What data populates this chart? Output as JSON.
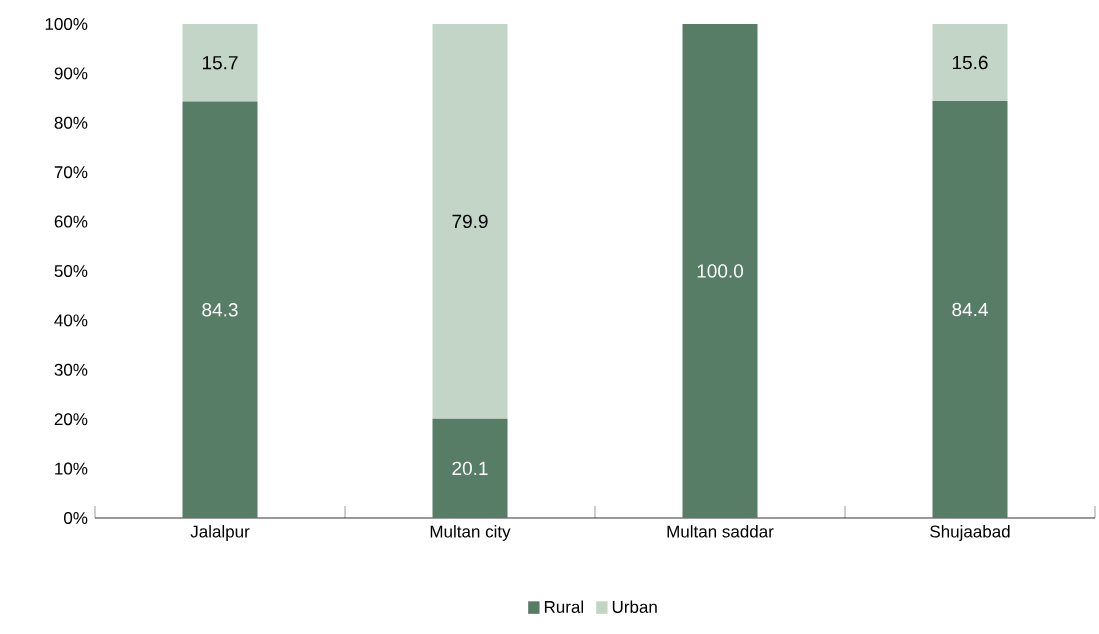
{
  "chart_data": {
    "type": "bar",
    "stacked": true,
    "categories": [
      "Jalalpur",
      "Multan city",
      "Multan saddar",
      "Shujaabad"
    ],
    "series": [
      {
        "name": "Rural",
        "color": "#587d67",
        "values": [
          84.3,
          20.1,
          100.0,
          84.4
        ],
        "value_labels": [
          "84.3",
          "20.1",
          "100.0",
          "84.4"
        ]
      },
      {
        "name": "Urban",
        "color": "#c3d5c7",
        "values": [
          15.7,
          79.9,
          0.0,
          15.6
        ],
        "value_labels": [
          "15.7",
          "79.9",
          null,
          "15.6"
        ]
      }
    ],
    "ylim": [
      0,
      100
    ],
    "yticks": [
      {
        "value": 0,
        "label": "0%"
      },
      {
        "value": 10,
        "label": "10%"
      },
      {
        "value": 20,
        "label": "20%"
      },
      {
        "value": 30,
        "label": "30%"
      },
      {
        "value": 40,
        "label": "40%"
      },
      {
        "value": 50,
        "label": "50%"
      },
      {
        "value": 60,
        "label": "60%"
      },
      {
        "value": 70,
        "label": "70%"
      },
      {
        "value": 80,
        "label": "80%"
      },
      {
        "value": 90,
        "label": "90%"
      },
      {
        "value": 100,
        "label": "100%"
      }
    ],
    "grid": false,
    "legend": "bottom"
  }
}
